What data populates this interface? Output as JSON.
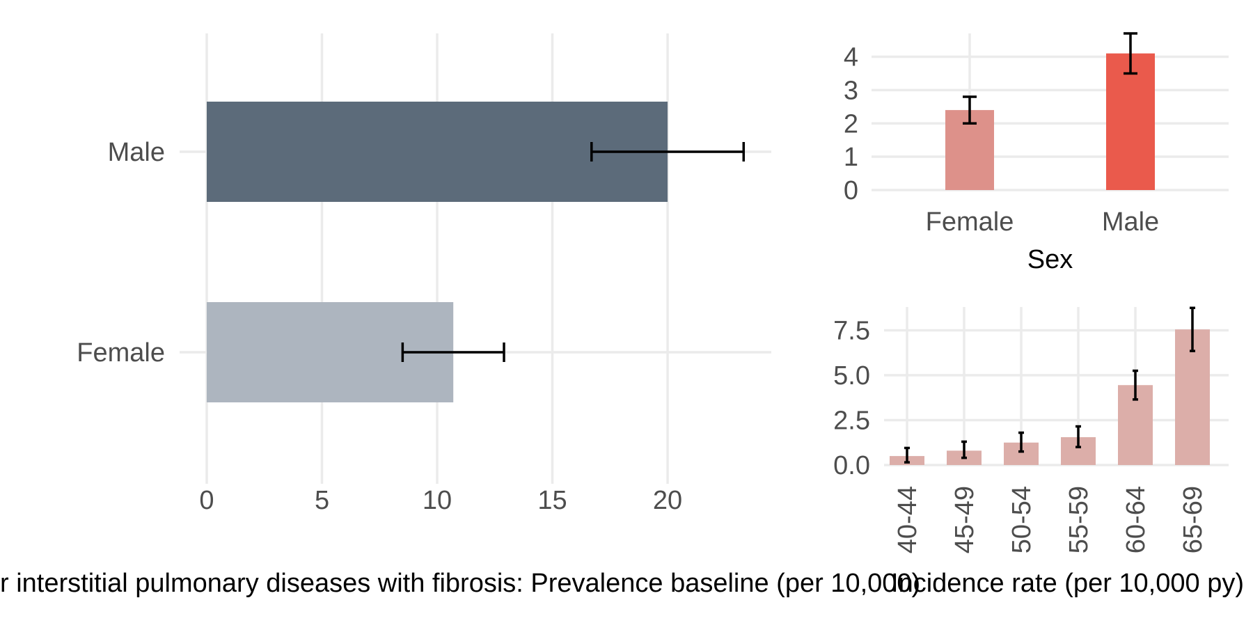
{
  "chart_data": [
    {
      "type": "bar",
      "orientation": "horizontal",
      "title": "",
      "xlabel": "",
      "ylabel": "",
      "categories": [
        "Female",
        "Male"
      ],
      "values": [
        10.7,
        20.0
      ],
      "ci_low": [
        8.5,
        16.7
      ],
      "ci_high": [
        12.9,
        23.3
      ],
      "colors": [
        "#adb5bf",
        "#5c6b7a"
      ],
      "xlim": [
        0,
        24.5
      ],
      "xticks": [
        "0",
        "5",
        "10",
        "15",
        "20"
      ],
      "grid": true
    },
    {
      "type": "bar",
      "orientation": "vertical",
      "title": "",
      "xlabel": "Sex",
      "ylabel": "",
      "categories": [
        "Female",
        "Male"
      ],
      "values": [
        2.4,
        4.1
      ],
      "ci_low": [
        2.0,
        3.5
      ],
      "ci_high": [
        2.8,
        4.7
      ],
      "colors": [
        "#dd918a",
        "#ea5a4c"
      ],
      "ylim": [
        0,
        4.7
      ],
      "yticks": [
        "0",
        "1",
        "2",
        "3",
        "4"
      ],
      "grid": true
    },
    {
      "type": "bar",
      "orientation": "vertical",
      "title": "",
      "xlabel": "",
      "ylabel": "",
      "categories": [
        "40-44",
        "45-49",
        "50-54",
        "55-59",
        "60-64",
        "65-69"
      ],
      "values": [
        0.5,
        0.8,
        1.25,
        1.55,
        4.45,
        7.55
      ],
      "ci_low": [
        0.15,
        0.4,
        0.75,
        1.0,
        3.65,
        6.35
      ],
      "ci_high": [
        0.95,
        1.3,
        1.8,
        2.15,
        5.25,
        8.75
      ],
      "colors": [
        "#dcaea9"
      ],
      "ylim": [
        0,
        8.8
      ],
      "yticks": [
        "0.0",
        "2.5",
        "5.0",
        "7.5"
      ],
      "grid": true
    }
  ],
  "captions": {
    "left": "r interstitial pulmonary diseases with fibrosis: Prevalence baseline (per 10,000)",
    "right": "Incidence rate (per 10,000 py)"
  }
}
